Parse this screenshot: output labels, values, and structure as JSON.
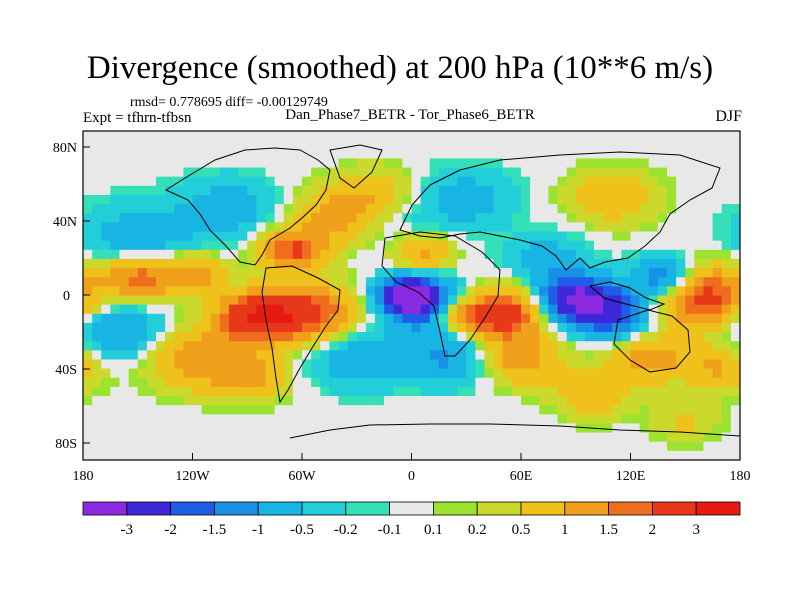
{
  "title": "Divergence (smoothed) at 200 hPa (10**6 m/s)",
  "rmsd_line": "rmsd= 0.778695 diff= -0.00129749",
  "expt_line": "Expt = tfhrn-tfbsn",
  "comparison": "Dan_Phase7_BETR - Tor_Phase6_BETR",
  "season": "DJF",
  "axes": {
    "y_ticks": [
      "80N",
      "40N",
      "0",
      "40S",
      "80S"
    ],
    "x_ticks": [
      "180",
      "120W",
      "60W",
      "0",
      "60E",
      "120E",
      "180"
    ]
  },
  "colorbar": {
    "labels": [
      "-3",
      "-2",
      "-1.5",
      "-1",
      "-0.5",
      "-0.2",
      "-0.1",
      "0.1",
      "0.2",
      "0.5",
      "1",
      "1.5",
      "2",
      "3"
    ],
    "colors": [
      "#8a2be2",
      "#3c28d8",
      "#1f5ce8",
      "#1790e6",
      "#18b4e4",
      "#22cfd8",
      "#35e0b8",
      "#e8e8e8",
      "#9be330",
      "#cbd92c",
      "#eec21a",
      "#f0a01b",
      "#ef6d1c",
      "#e8381a",
      "#e61a12"
    ]
  },
  "chart_data": {
    "type": "heatmap",
    "title": "Divergence (smoothed) at 200 hPa (10**6 m/s)",
    "x_range": [
      -180,
      180
    ],
    "y_range": [
      -90,
      90
    ],
    "x_ticks": [
      -180,
      -120,
      -60,
      0,
      60,
      120,
      180
    ],
    "y_ticks": [
      80,
      40,
      0,
      -40,
      -80
    ],
    "levels": [
      -3,
      -2,
      -1.5,
      -1,
      -0.5,
      -0.2,
      -0.1,
      0.1,
      0.2,
      0.5,
      1,
      1.5,
      2,
      3
    ],
    "blobs": [
      {
        "lon": -3,
        "lat": 0,
        "amp": -3.2,
        "r": 10
      },
      {
        "lon": 10,
        "lat": -5,
        "amp": -2.2,
        "r": 14
      },
      {
        "lon": 90,
        "lat": -2,
        "amp": -3.0,
        "r": 13
      },
      {
        "lon": 110,
        "lat": -10,
        "amp": -2.0,
        "r": 14
      },
      {
        "lon": 140,
        "lat": 10,
        "amp": -2.0,
        "r": 12
      },
      {
        "lon": -150,
        "lat": 30,
        "amp": -1.0,
        "r": 22
      },
      {
        "lon": -100,
        "lat": 50,
        "amp": -1.0,
        "r": 18
      },
      {
        "lon": 30,
        "lat": 55,
        "amp": -1.0,
        "r": 18
      },
      {
        "lon": -30,
        "lat": -35,
        "amp": -1.0,
        "r": 18
      },
      {
        "lon": 20,
        "lat": -35,
        "amp": -1.2,
        "r": 16
      },
      {
        "lon": 75,
        "lat": 20,
        "amp": -0.8,
        "r": 15
      },
      {
        "lon": -160,
        "lat": -20,
        "amp": -1.2,
        "r": 18
      },
      {
        "lon": 0,
        "lat": 30,
        "amp": -0.8,
        "r": 15
      },
      {
        "lon": -85,
        "lat": -12,
        "amp": 3.0,
        "r": 14
      },
      {
        "lon": -55,
        "lat": -10,
        "amp": 2.2,
        "r": 16
      },
      {
        "lon": 50,
        "lat": -10,
        "amp": 2.6,
        "r": 14
      },
      {
        "lon": 25,
        "lat": -10,
        "amp": 1.8,
        "r": 10
      },
      {
        "lon": 160,
        "lat": 0,
        "amp": 2.4,
        "r": 18
      },
      {
        "lon": -65,
        "lat": 25,
        "amp": 2.2,
        "r": 12
      },
      {
        "lon": 5,
        "lat": 25,
        "amp": 1.8,
        "r": 12
      },
      {
        "lon": -150,
        "lat": 10,
        "amp": 2.0,
        "r": 14
      },
      {
        "lon": -120,
        "lat": 12,
        "amp": 1.4,
        "r": 12
      },
      {
        "lon": -40,
        "lat": 45,
        "amp": 1.5,
        "r": 16
      },
      {
        "lon": 110,
        "lat": 55,
        "amp": 1.3,
        "r": 16
      },
      {
        "lon": 60,
        "lat": -35,
        "amp": 1.5,
        "r": 15
      },
      {
        "lon": 130,
        "lat": -35,
        "amp": 1.5,
        "r": 14
      },
      {
        "lon": -120,
        "lat": -35,
        "amp": 1.5,
        "r": 18
      },
      {
        "lon": 170,
        "lat": -40,
        "amp": 1.3,
        "r": 14
      },
      {
        "lon": -90,
        "lat": -45,
        "amp": 1.4,
        "r": 14
      },
      {
        "lon": 100,
        "lat": -55,
        "amp": 1.2,
        "r": 14
      },
      {
        "lon": -20,
        "lat": 60,
        "amp": 1.0,
        "r": 14
      },
      {
        "lon": 150,
        "lat": -70,
        "amp": 1.0,
        "r": 12
      }
    ]
  }
}
